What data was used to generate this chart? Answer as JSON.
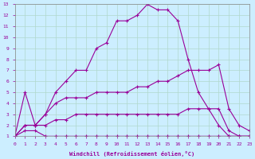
{
  "xlabel": "Windchill (Refroidissement éolien,°C)",
  "background_color": "#cceeff",
  "grid_color": "#b0d8cc",
  "line_color": "#990099",
  "xlim": [
    0,
    23
  ],
  "ylim": [
    1,
    13
  ],
  "xticks": [
    0,
    1,
    2,
    3,
    4,
    5,
    6,
    7,
    8,
    9,
    10,
    11,
    12,
    13,
    14,
    15,
    16,
    17,
    18,
    19,
    20,
    21,
    22,
    23
  ],
  "yticks": [
    1,
    2,
    3,
    4,
    5,
    6,
    7,
    8,
    9,
    10,
    11,
    12,
    13
  ],
  "lines": [
    {
      "x": [
        0,
        1,
        2,
        3,
        4,
        5,
        6,
        7,
        8,
        9,
        10,
        11,
        12,
        13,
        14,
        15,
        16,
        17,
        18,
        19,
        20,
        21,
        22,
        23
      ],
      "y": [
        1,
        5,
        2,
        3,
        5,
        6,
        7,
        7,
        9,
        9.5,
        11.5,
        11.5,
        12,
        13,
        12.5,
        12.5,
        11.5,
        8,
        5,
        3.5,
        2,
        1,
        1,
        1
      ]
    },
    {
      "x": [
        0,
        1,
        2,
        3,
        4,
        5,
        6,
        7,
        8,
        9,
        10,
        11,
        12,
        13,
        14,
        15,
        16,
        17,
        18,
        19,
        20,
        21,
        22,
        23
      ],
      "y": [
        1,
        2,
        2,
        3,
        4,
        4.5,
        4.5,
        4.5,
        5,
        5,
        5,
        5,
        5.5,
        5.5,
        6,
        6,
        6.5,
        7,
        7,
        7,
        7.5,
        3.5,
        2,
        1.5
      ]
    },
    {
      "x": [
        0,
        1,
        2,
        3,
        4,
        5,
        6,
        7,
        8,
        9,
        10,
        11,
        12,
        13,
        14,
        15,
        16,
        17,
        18,
        19,
        20,
        21,
        22,
        23
      ],
      "y": [
        1,
        2,
        2,
        2,
        2.5,
        2.5,
        3,
        3,
        3,
        3,
        3,
        3,
        3,
        3,
        3,
        3,
        3,
        3.5,
        3.5,
        3.5,
        3.5,
        1.5,
        1,
        1
      ]
    },
    {
      "x": [
        0,
        1,
        2,
        3,
        4,
        5,
        6,
        7,
        8,
        9,
        10,
        11,
        12,
        13,
        14,
        15,
        16,
        17,
        18,
        19,
        20,
        21,
        22,
        23
      ],
      "y": [
        1,
        1.5,
        1.5,
        1,
        1,
        1,
        1,
        1,
        1,
        1,
        1,
        1,
        1,
        1,
        1,
        1,
        1,
        1,
        1,
        1,
        1,
        1,
        1,
        1
      ]
    }
  ]
}
